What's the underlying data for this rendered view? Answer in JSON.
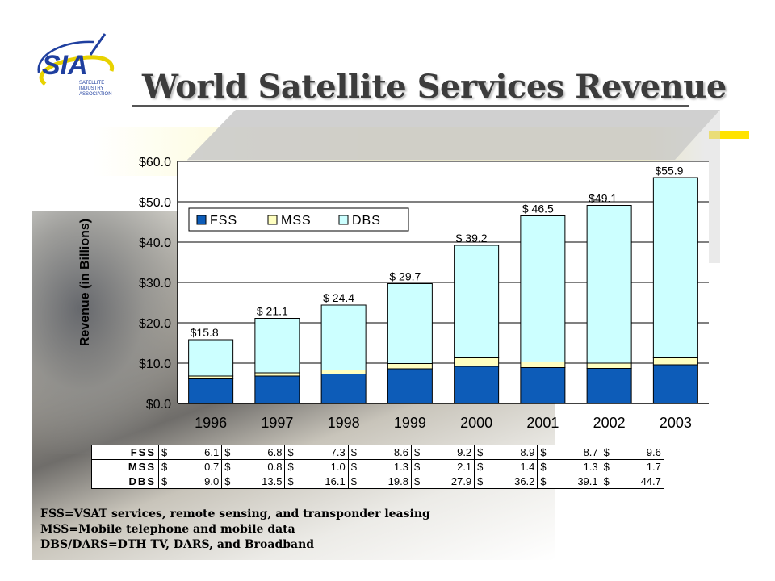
{
  "slide": {
    "title": "World Satellite Services Revenue",
    "logo_text": "SIA",
    "logo_subtext": [
      "SATELLITE",
      "INDUSTRY",
      "ASSOCIATION"
    ]
  },
  "chart_data": {
    "type": "bar",
    "stacked": true,
    "ylabel": "Revenue (in Billions)",
    "ylim": [
      0,
      60
    ],
    "y_ticks": [
      "$0.0",
      "$10.0",
      "$20.0",
      "$30.0",
      "$40.0",
      "$50.0",
      "$60.0"
    ],
    "grid": true,
    "legend_position": "top-left",
    "categories": [
      "1996",
      "1997",
      "1998",
      "1999",
      "2000",
      "2001",
      "2002",
      "2003"
    ],
    "totals": [
      15.8,
      21.1,
      24.4,
      29.7,
      39.2,
      46.5,
      49.1,
      55.9
    ],
    "total_labels": [
      "$15.8",
      "$ 21.1",
      "$ 24.4",
      "$ 29.7",
      "$ 39.2",
      "$ 46.5",
      "$49.1",
      "$55.9"
    ],
    "series": [
      {
        "name": "FSS",
        "color": "#0d5cb8",
        "values": [
          6.1,
          6.8,
          7.3,
          8.6,
          9.2,
          8.9,
          8.7,
          9.6
        ]
      },
      {
        "name": "MSS",
        "color": "#ffffc0",
        "values": [
          0.7,
          0.8,
          1.0,
          1.3,
          2.1,
          1.4,
          1.3,
          1.7
        ]
      },
      {
        "name": "DBS",
        "color": "#ccffff",
        "values": [
          9.0,
          13.5,
          16.1,
          19.8,
          27.9,
          36.2,
          39.1,
          44.7
        ]
      }
    ]
  },
  "data_table": {
    "currency": "$",
    "rows": [
      {
        "label": "FSS",
        "values": [
          "6.1",
          "6.8",
          "7.3",
          "8.6",
          "9.2",
          "8.9",
          "8.7",
          "9.6"
        ]
      },
      {
        "label": "MSS",
        "values": [
          "0.7",
          "0.8",
          "1.0",
          "1.3",
          "2.1",
          "1.4",
          "1.3",
          "1.7"
        ]
      },
      {
        "label": "DBS",
        "values": [
          "9.0",
          "13.5",
          "16.1",
          "19.8",
          "27.9",
          "36.2",
          "39.1",
          "44.7"
        ]
      }
    ]
  },
  "notes": [
    "FSS=VSAT services, remote sensing, and transponder leasing",
    "MSS=Mobile telephone and mobile data",
    "DBS/DARS=DTH TV, DARS, and Broadband"
  ]
}
